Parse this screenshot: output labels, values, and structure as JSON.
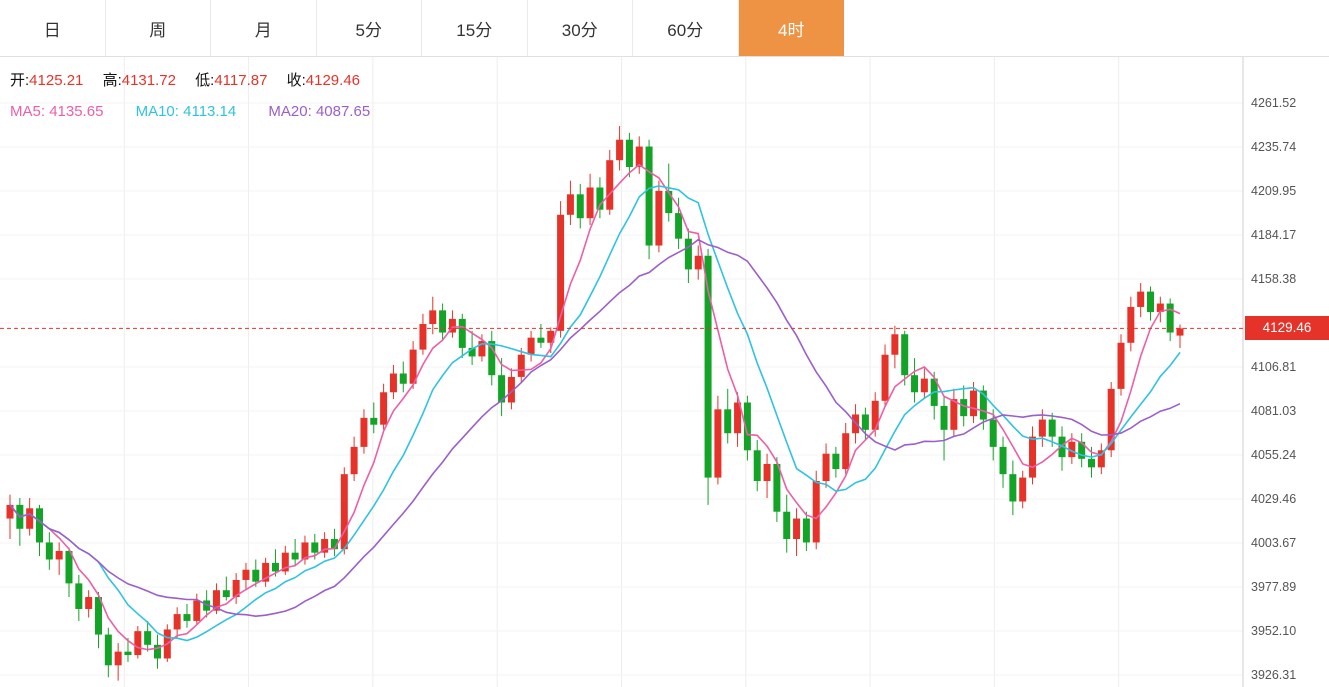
{
  "toolbar": {
    "active_color": "#ee9344",
    "tabs": [
      {
        "label": "日",
        "active": false
      },
      {
        "label": "周",
        "active": false
      },
      {
        "label": "月",
        "active": false
      },
      {
        "label": "5分",
        "active": false
      },
      {
        "label": "15分",
        "active": false
      },
      {
        "label": "30分",
        "active": false
      },
      {
        "label": "60分",
        "active": false
      },
      {
        "label": "4时",
        "active": true
      }
    ]
  },
  "legend": {
    "ohlc": [
      {
        "label": "开:",
        "value": "4125.21"
      },
      {
        "label": "高:",
        "value": "4131.72"
      },
      {
        "label": "低:",
        "value": "4117.87"
      },
      {
        "label": "收:",
        "value": "4129.46"
      }
    ],
    "ma": [
      {
        "label": "MA5:",
        "value": "4135.65"
      },
      {
        "label": "MA10:",
        "value": "4113.14"
      },
      {
        "label": "MA20:",
        "value": "4087.65"
      }
    ]
  },
  "price_badge": {
    "value": "4129.46"
  },
  "colors": {
    "up": "#e6332a",
    "down": "#13a327",
    "ma5": "#ec5fa7",
    "ma10": "#2fc3df",
    "ma20": "#9b5fc9",
    "price_line": "#e6332a",
    "badge_bg": "#e6332a",
    "value_text": "#e6332a",
    "label_text": "#111111",
    "axis_text": "#555555",
    "grid": "#ededed",
    "grid_h": "#f3f3f3",
    "axis_line": "#cfcfcf"
  },
  "chart_data": {
    "type": "candlestick",
    "timeframe": "4时",
    "current_price": 4129.46,
    "ohlc_legend": {
      "open": 4125.21,
      "high": 4131.72,
      "low": 4117.87,
      "close": 4129.46
    },
    "moving_averages": [
      {
        "name": "MA5",
        "period": 5,
        "legend_value": 4135.65
      },
      {
        "name": "MA10",
        "period": 10,
        "legend_value": 4113.14
      },
      {
        "name": "MA20",
        "period": 20,
        "legend_value": 4087.65
      }
    ],
    "y_axis": {
      "min": 3926.31,
      "max": 4261.52,
      "labels": [
        "4261.52",
        "4235.74",
        "4209.95",
        "4184.17",
        "4158.38",
        "4132.60",
        "4106.81",
        "4081.03",
        "4055.24",
        "4029.46",
        "4003.67",
        "3977.89",
        "3952.10",
        "3926.31"
      ]
    },
    "candles_format": [
      "open",
      "high",
      "low",
      "close"
    ],
    "candles": [
      [
        4018,
        4032,
        4006,
        4026
      ],
      [
        4026,
        4030,
        4002,
        4012
      ],
      [
        4012,
        4030,
        4008,
        4024
      ],
      [
        4024,
        4026,
        3996,
        4004
      ],
      [
        4004,
        4010,
        3988,
        3994
      ],
      [
        3994,
        4004,
        3985,
        3999
      ],
      [
        3999,
        4001,
        3972,
        3980
      ],
      [
        3980,
        3985,
        3958,
        3965
      ],
      [
        3965,
        3976,
        3960,
        3972
      ],
      [
        3972,
        3975,
        3942,
        3950
      ],
      [
        3950,
        3954,
        3925,
        3932
      ],
      [
        3932,
        3945,
        3923,
        3940
      ],
      [
        3940,
        3948,
        3934,
        3938
      ],
      [
        3938,
        3955,
        3936,
        3952
      ],
      [
        3952,
        3958,
        3940,
        3944
      ],
      [
        3944,
        3950,
        3930,
        3936
      ],
      [
        3936,
        3956,
        3934,
        3953
      ],
      [
        3953,
        3966,
        3948,
        3962
      ],
      [
        3962,
        3968,
        3954,
        3958
      ],
      [
        3958,
        3974,
        3956,
        3970
      ],
      [
        3970,
        3976,
        3960,
        3964
      ],
      [
        3964,
        3980,
        3962,
        3976
      ],
      [
        3976,
        3984,
        3970,
        3972
      ],
      [
        3972,
        3986,
        3968,
        3982
      ],
      [
        3982,
        3992,
        3976,
        3988
      ],
      [
        3988,
        3994,
        3978,
        3981
      ],
      [
        3981,
        3995,
        3978,
        3992
      ],
      [
        3992,
        4000,
        3984,
        3987
      ],
      [
        3987,
        4002,
        3985,
        3998
      ],
      [
        3998,
        4006,
        3990,
        3994
      ],
      [
        3994,
        4008,
        3991,
        4004
      ],
      [
        4004,
        4009,
        3994,
        3998
      ],
      [
        3998,
        4010,
        3995,
        4006
      ],
      [
        4006,
        4012,
        3996,
        4000
      ],
      [
        4000,
        4048,
        3997,
        4044
      ],
      [
        4044,
        4066,
        4040,
        4060
      ],
      [
        4060,
        4082,
        4056,
        4077
      ],
      [
        4077,
        4086,
        4068,
        4073
      ],
      [
        4073,
        4097,
        4070,
        4092
      ],
      [
        4092,
        4108,
        4088,
        4103
      ],
      [
        4103,
        4110,
        4092,
        4097
      ],
      [
        4097,
        4122,
        4094,
        4117
      ],
      [
        4117,
        4138,
        4114,
        4132
      ],
      [
        4132,
        4148,
        4126,
        4140
      ],
      [
        4140,
        4144,
        4122,
        4127
      ],
      [
        4127,
        4140,
        4124,
        4135
      ],
      [
        4135,
        4138,
        4112,
        4118
      ],
      [
        4118,
        4128,
        4108,
        4113
      ],
      [
        4113,
        4126,
        4110,
        4122
      ],
      [
        4122,
        4128,
        4096,
        4102
      ],
      [
        4102,
        4112,
        4078,
        4086
      ],
      [
        4086,
        4106,
        4082,
        4101
      ],
      [
        4101,
        4118,
        4098,
        4114
      ],
      [
        4114,
        4128,
        4110,
        4124
      ],
      [
        4124,
        4132,
        4118,
        4121
      ],
      [
        4121,
        4130,
        4115,
        4128
      ],
      [
        4128,
        4204,
        4124,
        4196
      ],
      [
        4196,
        4216,
        4190,
        4208
      ],
      [
        4208,
        4214,
        4188,
        4194
      ],
      [
        4194,
        4220,
        4190,
        4212
      ],
      [
        4212,
        4218,
        4194,
        4199
      ],
      [
        4199,
        4234,
        4196,
        4228
      ],
      [
        4228,
        4248,
        4222,
        4240
      ],
      [
        4240,
        4244,
        4218,
        4224
      ],
      [
        4224,
        4242,
        4220,
        4236
      ],
      [
        4236,
        4240,
        4170,
        4178
      ],
      [
        4178,
        4216,
        4174,
        4210
      ],
      [
        4210,
        4226,
        4192,
        4197
      ],
      [
        4197,
        4206,
        4176,
        4182
      ],
      [
        4182,
        4188,
        4156,
        4164
      ],
      [
        4164,
        4178,
        4158,
        4172
      ],
      [
        4172,
        4176,
        4026,
        4042
      ],
      [
        4042,
        4090,
        4038,
        4082
      ],
      [
        4082,
        4094,
        4062,
        4068
      ],
      [
        4068,
        4092,
        4060,
        4086
      ],
      [
        4086,
        4090,
        4052,
        4058
      ],
      [
        4058,
        4064,
        4034,
        4040
      ],
      [
        4040,
        4056,
        4030,
        4050
      ],
      [
        4050,
        4054,
        4016,
        4022
      ],
      [
        4022,
        4032,
        3998,
        4006
      ],
      [
        4006,
        4024,
        3996,
        4018
      ],
      [
        4018,
        4022,
        3999,
        4004
      ],
      [
        4004,
        4046,
        4000,
        4040
      ],
      [
        4040,
        4062,
        4036,
        4056
      ],
      [
        4056,
        4060,
        4042,
        4047
      ],
      [
        4047,
        4074,
        4044,
        4068
      ],
      [
        4068,
        4085,
        4062,
        4079
      ],
      [
        4079,
        4083,
        4064,
        4070
      ],
      [
        4070,
        4092,
        4066,
        4087
      ],
      [
        4087,
        4120,
        4084,
        4114
      ],
      [
        4114,
        4131,
        4106,
        4126
      ],
      [
        4126,
        4128,
        4096,
        4102
      ],
      [
        4102,
        4112,
        4086,
        4092
      ],
      [
        4092,
        4106,
        4088,
        4100
      ],
      [
        4100,
        4104,
        4076,
        4084
      ],
      [
        4084,
        4090,
        4052,
        4070
      ],
      [
        4070,
        4094,
        4066,
        4088
      ],
      [
        4088,
        4096,
        4072,
        4078
      ],
      [
        4078,
        4098,
        4074,
        4093
      ],
      [
        4093,
        4096,
        4070,
        4076
      ],
      [
        4076,
        4082,
        4052,
        4060
      ],
      [
        4060,
        4066,
        4036,
        4044
      ],
      [
        4044,
        4052,
        4020,
        4028
      ],
      [
        4028,
        4046,
        4024,
        4042
      ],
      [
        4042,
        4072,
        4038,
        4066
      ],
      [
        4066,
        4082,
        4060,
        4076
      ],
      [
        4076,
        4080,
        4060,
        4066
      ],
      [
        4066,
        4072,
        4046,
        4054
      ],
      [
        4054,
        4068,
        4050,
        4063
      ],
      [
        4063,
        4068,
        4048,
        4053
      ],
      [
        4053,
        4060,
        4042,
        4048
      ],
      [
        4048,
        4062,
        4044,
        4058
      ],
      [
        4058,
        4098,
        4054,
        4094
      ],
      [
        4094,
        4126,
        4090,
        4121
      ],
      [
        4121,
        4148,
        4116,
        4142
      ],
      [
        4142,
        4156,
        4136,
        4151
      ],
      [
        4151,
        4154,
        4134,
        4139
      ],
      [
        4139,
        4148,
        4133,
        4144
      ],
      [
        4144,
        4147,
        4122,
        4127
      ],
      [
        4125.21,
        4131.72,
        4117.87,
        4129.46
      ]
    ]
  }
}
